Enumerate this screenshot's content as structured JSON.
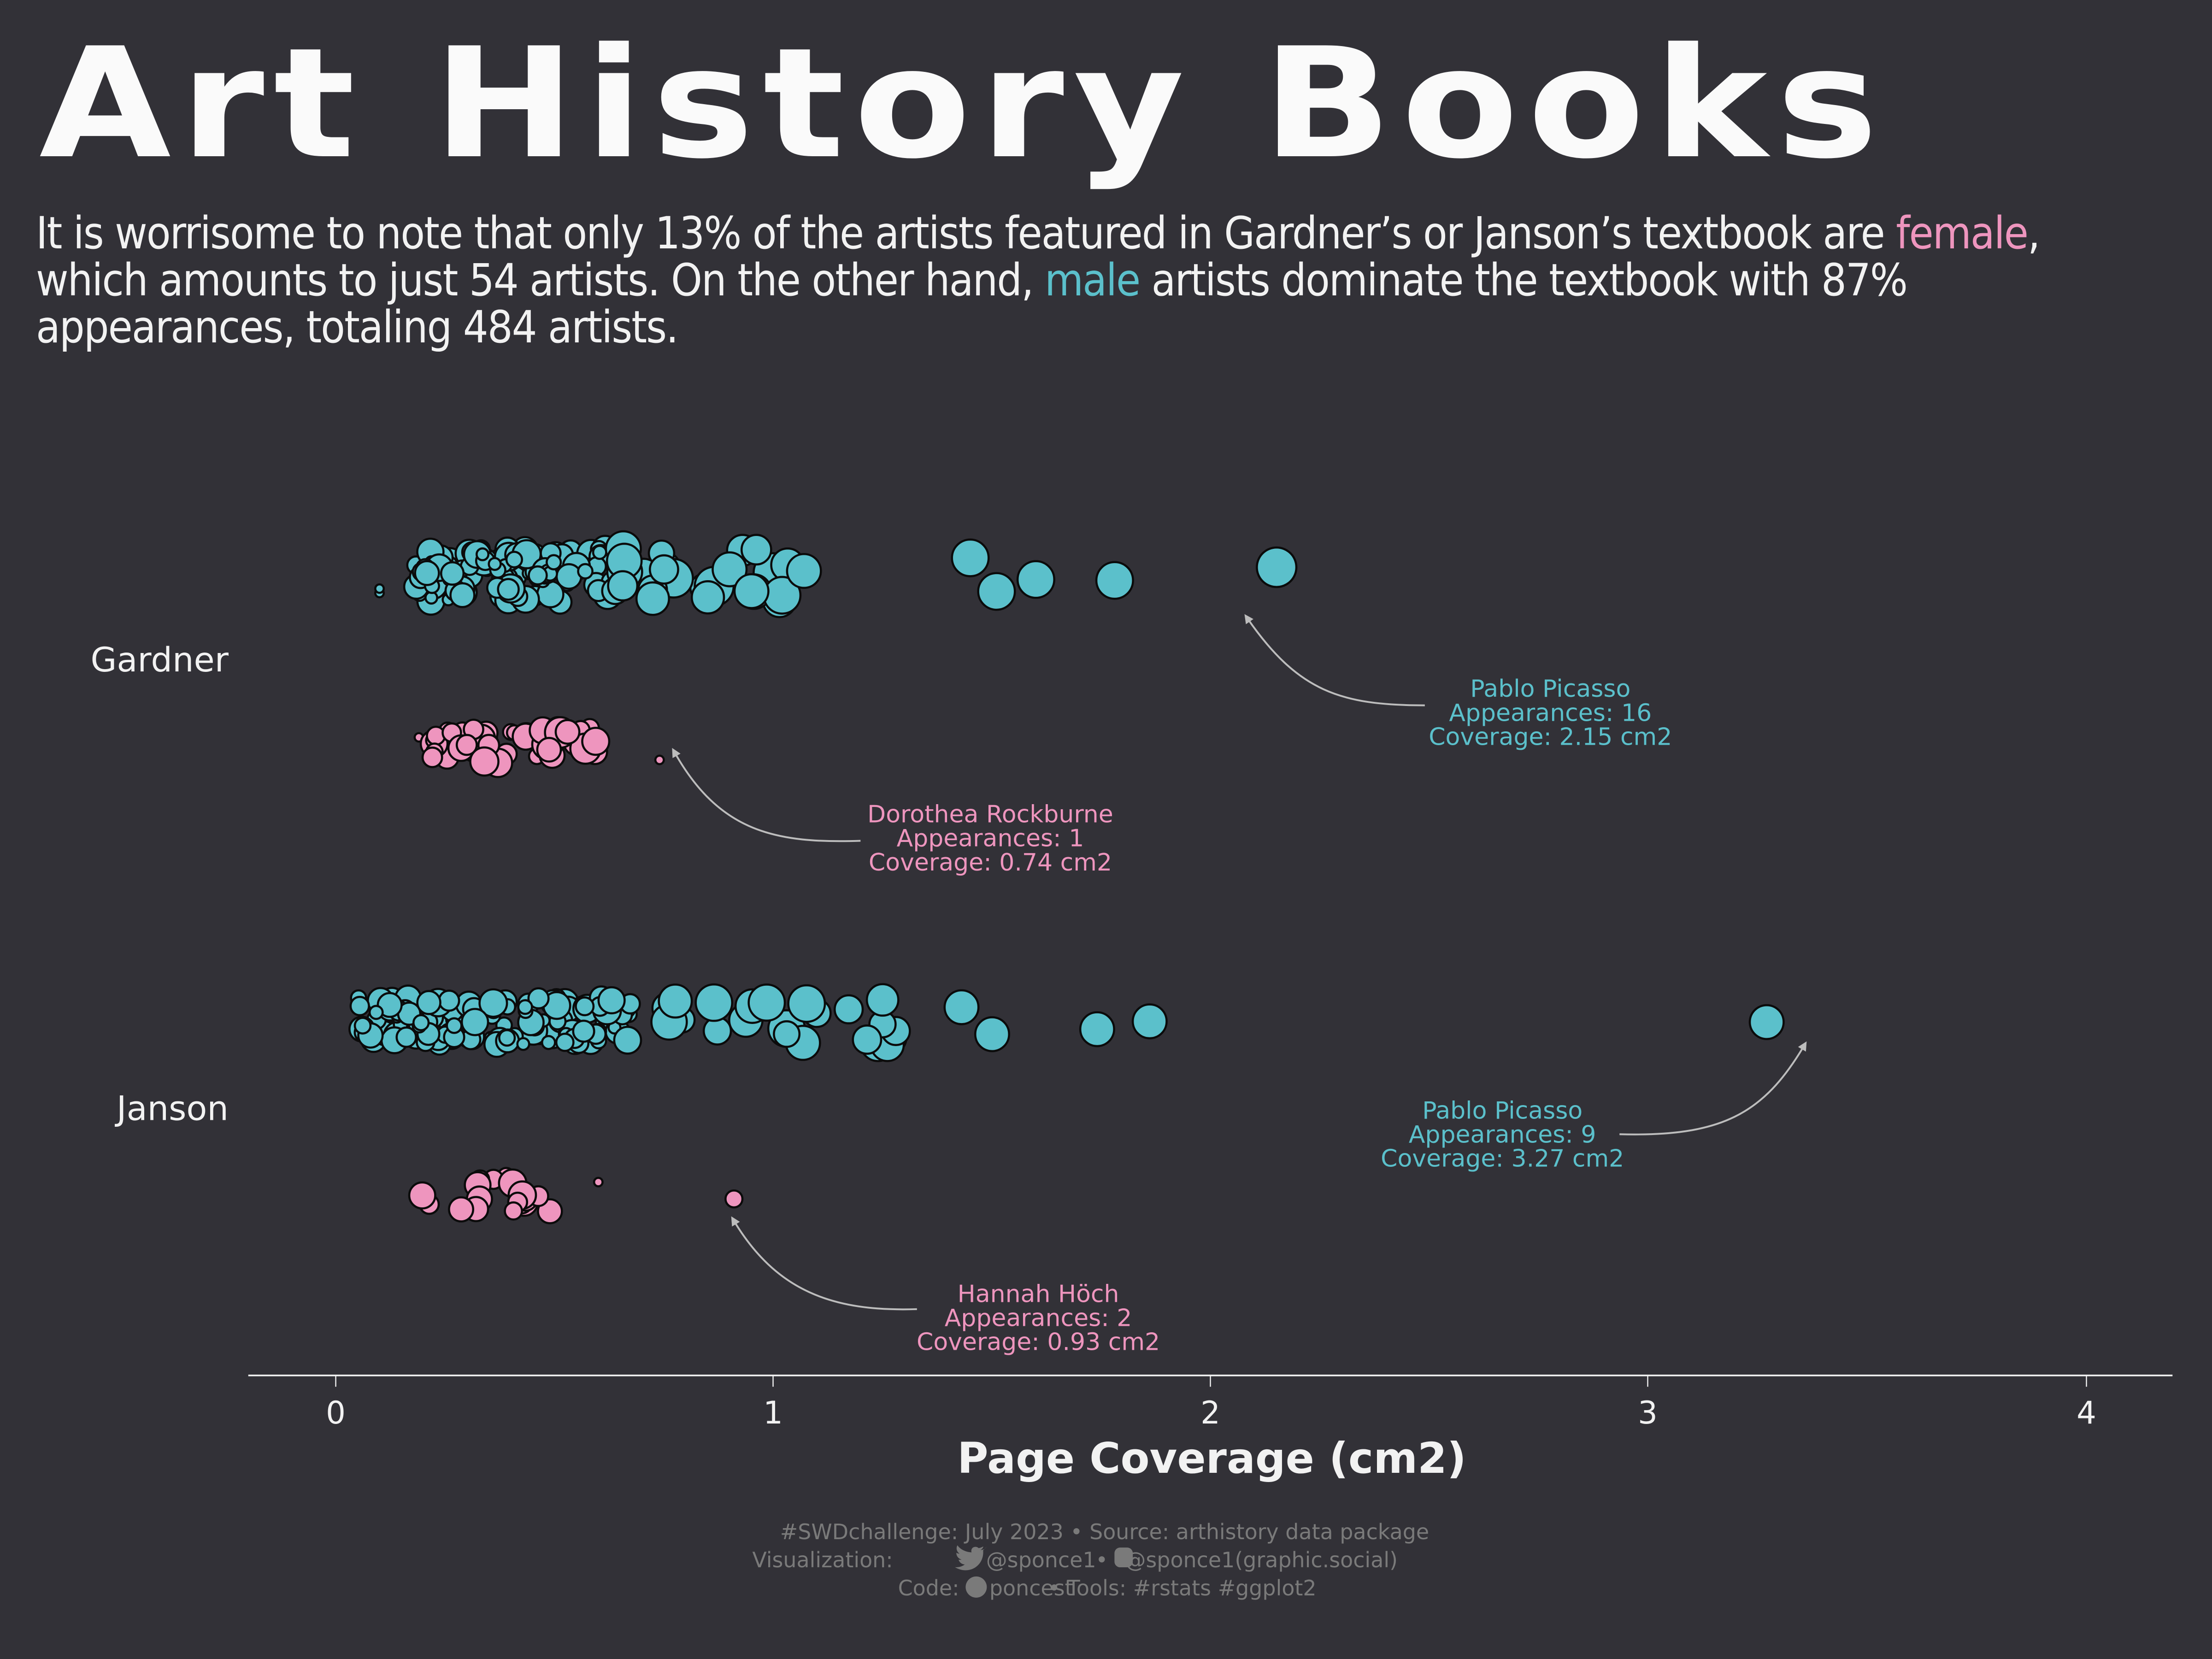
{
  "title": "Art History Books",
  "subtitle": {
    "part1": "It is worrisome to note that only 13% of the artists featured in Gardner’s or Janson’s textbook are ",
    "female_word": "female",
    "part2": ", which amounts to just 54 artists. On the other hand, ",
    "male_word": "male",
    "part3": " artists dominate the textbook with 87% appearances, totaling 484 artists."
  },
  "colors": {
    "background": "#323137",
    "female": "#ee95be",
    "male": "#5bc0cb",
    "text": "#f2f2f2",
    "caption": "#7a7a7a",
    "arrow": "#bdbdbd"
  },
  "annotations": [
    {
      "book": "Gardner",
      "gender": "male",
      "name": "Pablo Picasso",
      "appearances_label": "Appearances: 16",
      "coverage_label": "Coverage: 2.15 cm2"
    },
    {
      "book": "Gardner",
      "gender": "female",
      "name": "Dorothea Rockburne",
      "appearances_label": "Appearances: 1",
      "coverage_label": "Coverage: 0.74 cm2"
    },
    {
      "book": "Janson",
      "gender": "male",
      "name": "Pablo Picasso",
      "appearances_label": "Appearances: 9",
      "coverage_label": "Coverage: 3.27 cm2"
    },
    {
      "book": "Janson",
      "gender": "female",
      "name": "Hannah Höch",
      "appearances_label": "Appearances: 2",
      "coverage_label": "Coverage: 0.93 cm2"
    }
  ],
  "axis": {
    "xlabel": "Page Coverage (cm2)",
    "ticks": [
      "0",
      "1",
      "2",
      "3",
      "4"
    ],
    "categories": [
      "Gardner",
      "Janson"
    ]
  },
  "footer": {
    "line1": "#SWDchallenge: July 2023 • Source: arthistory data package",
    "line2_prefix": "Visualization:",
    "line2_twitter": "@sponce1",
    "line2_sep": "•",
    "line2_mastodon": "@sponce1(graphic.social)",
    "line3_prefix": "Code:",
    "line3_github": "poncest",
    "line3_rest": "• Tools: #rstats #ggplot2"
  },
  "chart_data": {
    "type": "scatter",
    "title": "Art History Books",
    "xlabel": "Page Coverage (cm2)",
    "ylabel": "",
    "xlim": [
      -0.2,
      4.2
    ],
    "x_ticks": [
      0,
      1,
      2,
      3,
      4
    ],
    "y_categories": [
      "Gardner",
      "Janson"
    ],
    "legend": "none (colors: female pink, male teal)",
    "series": [
      {
        "name": "Gardner - male",
        "color": "#5bc0cb",
        "x_range": [
          0.1,
          2.15
        ],
        "highlight": {
          "name": "Pablo Picasso",
          "x": 2.15,
          "appearances": 16
        }
      },
      {
        "name": "Gardner - female",
        "color": "#ee95be",
        "x_range": [
          0.19,
          0.74
        ],
        "highlight": {
          "name": "Dorothea Rockburne",
          "x": 0.74,
          "appearances": 1
        }
      },
      {
        "name": "Janson - male",
        "color": "#5bc0cb",
        "x_range": [
          0.05,
          3.27
        ],
        "highlight": {
          "name": "Pablo Picasso",
          "x": 3.27,
          "appearances": 9
        }
      },
      {
        "name": "Janson - female",
        "color": "#ee95be",
        "x_range": [
          0.17,
          0.93
        ],
        "highlight": {
          "name": "Hannah Höch",
          "x": 0.93,
          "appearances": 2
        }
      }
    ],
    "summary": {
      "female_pct": 13,
      "female_artists": 54,
      "male_pct": 87,
      "male_artists": 484
    }
  }
}
